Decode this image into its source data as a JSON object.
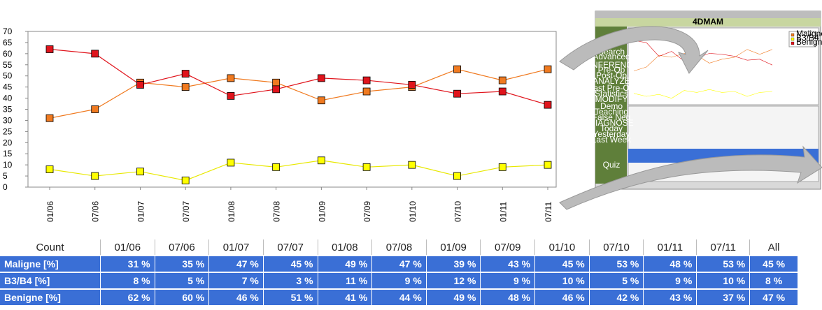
{
  "chart_data": {
    "type": "line",
    "categories": [
      "01/06",
      "07/06",
      "01/07",
      "07/07",
      "01/08",
      "07/08",
      "01/09",
      "07/09",
      "01/10",
      "07/10",
      "01/11",
      "07/11"
    ],
    "series": [
      {
        "name": "Maligne",
        "color": "#f07a20",
        "values": [
          31,
          35,
          47,
          45,
          49,
          47,
          39,
          43,
          45,
          53,
          48,
          53
        ]
      },
      {
        "name": "B3/B4",
        "color": "#ffff00",
        "values": [
          8,
          5,
          7,
          3,
          11,
          9,
          12,
          9,
          10,
          5,
          9,
          10
        ]
      },
      {
        "name": "Benigne",
        "color": "#e0141c",
        "values": [
          62,
          60,
          46,
          51,
          41,
          44,
          49,
          48,
          46,
          42,
          43,
          37
        ]
      }
    ],
    "ylim": [
      0,
      70
    ],
    "yticks": [
      0,
      5,
      10,
      15,
      20,
      25,
      30,
      35,
      40,
      45,
      50,
      55,
      60,
      65,
      70
    ]
  },
  "table": {
    "columns": [
      "Count",
      "01/06",
      "07/06",
      "01/07",
      "07/07",
      "01/08",
      "07/08",
      "01/09",
      "07/09",
      "01/10",
      "07/10",
      "01/11",
      "07/11",
      "All"
    ],
    "rows": [
      [
        "Maligne  [%]",
        "31 %",
        "35 %",
        "47 %",
        "45 %",
        "49 %",
        "47 %",
        "39 %",
        "43 %",
        "45 %",
        "53 %",
        "48 %",
        "53 %",
        "45 %"
      ],
      [
        "B3/B4  [%]",
        "8 %",
        "5 %",
        "7 %",
        "3 %",
        "11 %",
        "9 %",
        "12 %",
        "9 %",
        "10 %",
        "5 %",
        "9 %",
        "10 %",
        "8 %"
      ],
      [
        "Benigne  [%]",
        "62 %",
        "60 %",
        "46 %",
        "51 %",
        "41 %",
        "44 %",
        "49 %",
        "48 %",
        "46 %",
        "42 %",
        "43 %",
        "37 %",
        "47 %"
      ]
    ]
  },
  "thumbnail": {
    "title": "4DMAM",
    "menu": [
      "Search",
      "Advanced",
      "CONFERENCES",
      "Pre-Op",
      "Post-Op",
      "ANALYZE",
      "Last Pre-Op",
      "Statistics",
      "MODIFY",
      "Demo",
      "Teaching",
      "False Neg",
      "DIAGNOSE",
      "Today",
      "Yesterday",
      "Last Week",
      "Quiz"
    ]
  }
}
